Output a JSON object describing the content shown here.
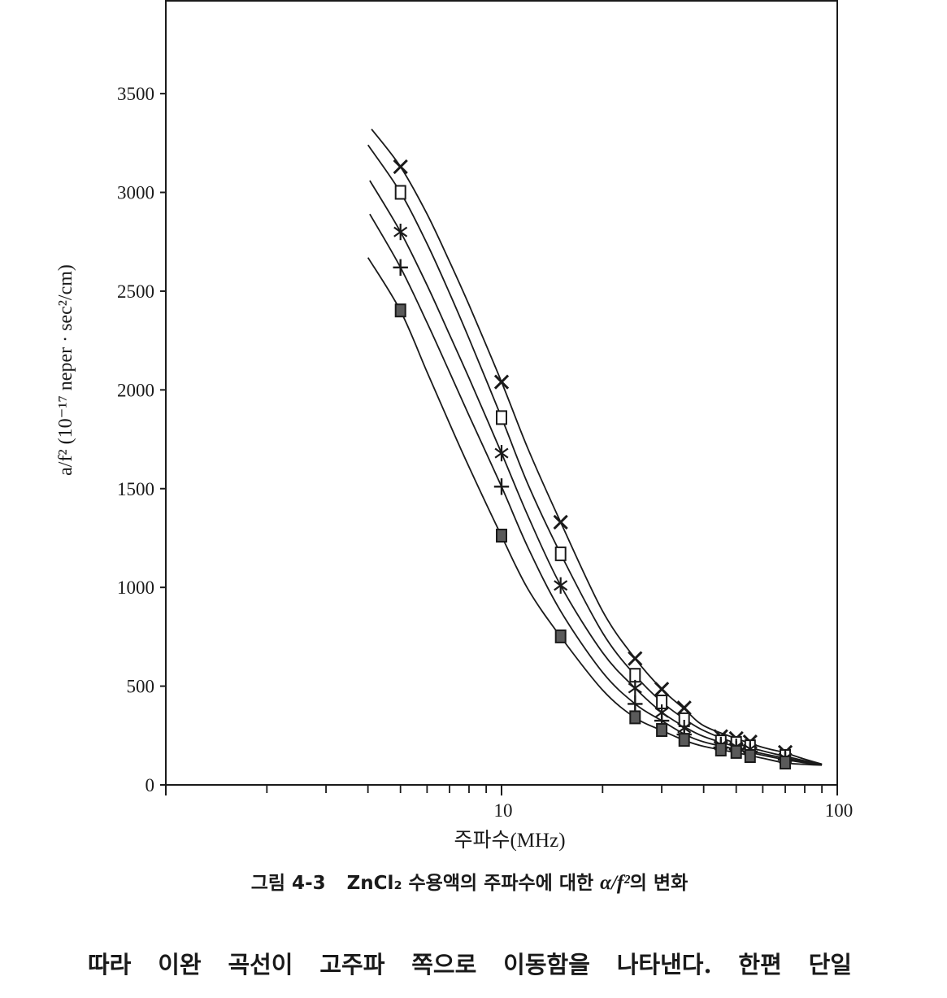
{
  "chart_data": {
    "type": "scatter",
    "title": "",
    "xlabel": "주파수(MHz)",
    "ylabel": "a/f² (10⁻¹⁷ neper · sec²/cm)",
    "x_scale": "log",
    "xlim": [
      1,
      100
    ],
    "ylim": [
      0,
      3970
    ],
    "grid": false,
    "legend": "none",
    "x_ticks_major": [
      1,
      10,
      100
    ],
    "x_ticks_minor": [
      2,
      3,
      4,
      5,
      6,
      7,
      8,
      9,
      20,
      30,
      40,
      50,
      60,
      70,
      80,
      90
    ],
    "x_tick_labels": [
      {
        "value": 10,
        "label": "10"
      },
      {
        "value": 100,
        "label": "100"
      }
    ],
    "y_ticks": [
      {
        "value": 0,
        "label": "0"
      },
      {
        "value": 500,
        "label": "500"
      },
      {
        "value": 1000,
        "label": "1000"
      },
      {
        "value": 1500,
        "label": "1500"
      },
      {
        "value": 2000,
        "label": "2000"
      },
      {
        "value": 2500,
        "label": "2500"
      },
      {
        "value": 3000,
        "label": "3000"
      },
      {
        "value": 3500,
        "label": "3500"
      }
    ],
    "series": [
      {
        "marker": "x-mark",
        "x": [
          5,
          10,
          15,
          25,
          30,
          35,
          45,
          50,
          55,
          70
        ],
        "y": [
          3130,
          2040,
          1330,
          640,
          485,
          390,
          245,
          235,
          218,
          165
        ],
        "curve": {
          "x": [
            4.1,
            5,
            6,
            7,
            8,
            10,
            12,
            15,
            20,
            25,
            30,
            35,
            40,
            50,
            60,
            70,
            80,
            90
          ],
          "y": [
            3320,
            3130,
            2890,
            2650,
            2430,
            2040,
            1700,
            1330,
            880,
            640,
            485,
            385,
            300,
            235,
            190,
            162,
            130,
            105
          ]
        }
      },
      {
        "marker": "open-square",
        "x": [
          5,
          10,
          15,
          25,
          30,
          35,
          45,
          50,
          55,
          70
        ],
        "y": [
          3000,
          1860,
          1170,
          555,
          420,
          330,
          218,
          210,
          193,
          144
        ],
        "curve": {
          "x": [
            4.0,
            5,
            6,
            7,
            8,
            10,
            12,
            15,
            20,
            25,
            30,
            35,
            40,
            50,
            60,
            70,
            80,
            90
          ],
          "y": [
            3240,
            3000,
            2740,
            2490,
            2260,
            1860,
            1520,
            1170,
            770,
            555,
            420,
            335,
            275,
            210,
            172,
            145,
            122,
            104
          ]
        }
      },
      {
        "marker": "asterisk",
        "x": [
          5,
          10,
          15,
          25,
          30,
          35,
          45,
          50,
          55,
          70
        ],
        "y": [
          2800,
          1680,
          1010,
          490,
          366,
          288,
          202,
          193,
          181,
          136
        ],
        "curve": {
          "x": [
            4.05,
            5,
            6,
            7,
            8,
            10,
            12,
            15,
            20,
            25,
            30,
            35,
            40,
            50,
            60,
            70,
            80,
            90
          ],
          "y": [
            3060,
            2800,
            2530,
            2280,
            2060,
            1680,
            1360,
            1010,
            670,
            490,
            368,
            295,
            245,
            193,
            158,
            136,
            117,
            103
          ]
        }
      },
      {
        "marker": "plus",
        "x": [
          5,
          10,
          25,
          30,
          35,
          45,
          50,
          55,
          70
        ],
        "y": [
          2620,
          1510,
          410,
          325,
          255,
          190,
          181,
          169,
          128
        ],
        "curve": {
          "x": [
            4.05,
            5,
            6,
            7,
            8,
            10,
            12,
            15,
            20,
            25,
            30,
            35,
            40,
            50,
            60,
            70,
            80,
            90
          ],
          "y": [
            2890,
            2620,
            2340,
            2090,
            1870,
            1510,
            1200,
            880,
            570,
            410,
            325,
            258,
            218,
            180,
            150,
            128,
            112,
            102
          ]
        }
      },
      {
        "marker": "filled-square",
        "x": [
          5,
          10,
          15,
          25,
          30,
          35,
          45,
          50,
          55,
          70
        ],
        "y": [
          2400,
          1260,
          750,
          340,
          276,
          226,
          177,
          165,
          144,
          111
        ],
        "curve": {
          "x": [
            4.0,
            5,
            6,
            7,
            8,
            10,
            12,
            15,
            20,
            25,
            30,
            35,
            40,
            50,
            60,
            70,
            80,
            90
          ],
          "y": [
            2670,
            2400,
            2090,
            1830,
            1610,
            1260,
            990,
            750,
            480,
            340,
            276,
            226,
            195,
            163,
            135,
            111,
            104,
            100
          ]
        }
      }
    ]
  },
  "caption": {
    "label": "그림 4-3",
    "text": "ZnCl₂ 수용액의 주파수에 대한",
    "symbol": "α/f²",
    "suffix": "의 변화"
  },
  "body_text": {
    "line1": "따라 이완 곡선이 고주파 쪽으로 이동함을 나타낸다. 한편 단일"
  },
  "colors": {
    "ink": "#1a1a1a",
    "marker_fill": "#5a5a5a",
    "background": "#ffffff"
  }
}
